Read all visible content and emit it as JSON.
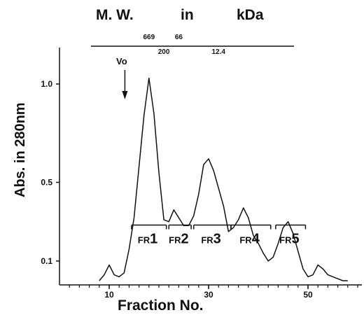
{
  "chart_data": {
    "type": "line",
    "title": "",
    "xlabel": "Fraction No.",
    "ylabel": "Abs. in 280nm",
    "xlim": [
      0,
      60
    ],
    "ylim": [
      0,
      1.1
    ],
    "x_ticks": [
      {
        "value": 10,
        "label": "10"
      },
      {
        "value": 30,
        "label": "30"
      },
      {
        "value": 50,
        "label": "50"
      }
    ],
    "y_ticks": [
      {
        "value": 0.1,
        "label": "0.1"
      },
      {
        "value": 0.5,
        "label": "0.5"
      },
      {
        "value": 1.0,
        "label": "1.0"
      }
    ],
    "grid": false,
    "series": [
      {
        "x": [
          8,
          9,
          10,
          11,
          12,
          13,
          14,
          15,
          16,
          17,
          18,
          19,
          20,
          21,
          22,
          23,
          24,
          25,
          26,
          27,
          28,
          29,
          30,
          31,
          32,
          33,
          34,
          35,
          36,
          37,
          38,
          39,
          40,
          41,
          42,
          43,
          44,
          45,
          46,
          47,
          48,
          49,
          50,
          51,
          52,
          53,
          54,
          55,
          56,
          57,
          58
        ],
        "y": [
          0.0,
          0.03,
          0.08,
          0.03,
          0.02,
          0.04,
          0.16,
          0.32,
          0.58,
          0.84,
          1.03,
          0.85,
          0.55,
          0.31,
          0.3,
          0.36,
          0.32,
          0.28,
          0.28,
          0.33,
          0.44,
          0.59,
          0.62,
          0.56,
          0.47,
          0.38,
          0.25,
          0.27,
          0.31,
          0.37,
          0.32,
          0.23,
          0.19,
          0.14,
          0.1,
          0.12,
          0.19,
          0.27,
          0.3,
          0.24,
          0.15,
          0.06,
          0.02,
          0.03,
          0.08,
          0.06,
          0.03,
          0.02,
          0.01,
          0.0,
          0.0
        ]
      }
    ],
    "fractions": [
      {
        "prefix": "FR",
        "number": "1",
        "x_start": 14.5,
        "x_end": 21.5,
        "y": 0.29
      },
      {
        "prefix": "FR",
        "number": "2",
        "x_start": 22,
        "x_end": 26.5,
        "y": 0.29
      },
      {
        "prefix": "FR",
        "number": "3",
        "x_start": 27,
        "x_end": 34.5,
        "y": 0.29
      },
      {
        "prefix": "FR",
        "number": "4",
        "x_start": 34.5,
        "x_end": 42.5,
        "y": 0.29
      },
      {
        "prefix": "FR",
        "number": "5",
        "x_start": 43.5,
        "x_end": 49.5,
        "y": 0.29
      }
    ],
    "void_marker": {
      "label": "Vo",
      "x": 14
    }
  },
  "mw_scale": {
    "title_parts": [
      "M. W.",
      "in",
      "kDa"
    ],
    "labels": [
      {
        "text": "669",
        "x": 18
      },
      {
        "text": "66",
        "x": 24
      },
      {
        "text": "200",
        "x": 21
      },
      {
        "text": "12.4",
        "x": 32
      }
    ]
  }
}
